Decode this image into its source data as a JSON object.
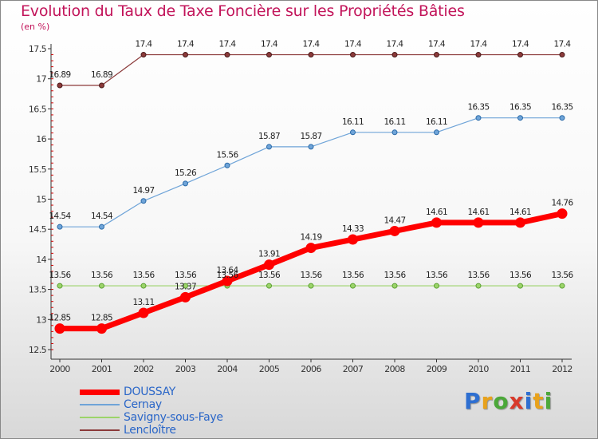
{
  "header": {
    "title": "Evolution du Taux de Taxe Foncière sur les Propriétés Bâties",
    "unit": "(en %)"
  },
  "logo": {
    "letters": [
      "P",
      "r",
      "o",
      "x",
      "i",
      "t",
      "i"
    ],
    "colors": [
      "#2e6fd1",
      "#e8a21c",
      "#4ca83a",
      "#d83a2a",
      "#2e6fd1",
      "#e8a21c",
      "#4ca83a"
    ]
  },
  "chart_data": {
    "type": "line",
    "title": "Evolution du Taux de Taxe Foncière sur les Propriétés Bâties",
    "ylabel": "(en %)",
    "xlabel": "",
    "x": [
      "2000",
      "2001",
      "2002",
      "2003",
      "2004",
      "2005",
      "2006",
      "2007",
      "2008",
      "2009",
      "2010",
      "2011",
      "2012"
    ],
    "ylim": [
      12.5,
      17.5
    ],
    "yticks": [
      "12.5",
      "13",
      "13.5",
      "14",
      "14.5",
      "15",
      "15.5",
      "16",
      "16.5",
      "17",
      "17.5"
    ],
    "grid": false,
    "legend_position": "bottom-left",
    "series": [
      {
        "name": "DOUSSAY",
        "color": "#ff0000",
        "values": [
          12.85,
          12.85,
          13.11,
          13.37,
          13.64,
          13.91,
          14.19,
          14.33,
          14.47,
          14.61,
          14.61,
          14.61,
          14.76
        ],
        "labels": [
          "12.85",
          "12.85",
          "13.11",
          "13.37",
          "13.64",
          "13.91",
          "14.19",
          "14.33",
          "14.47",
          "14.61",
          "14.61",
          "14.61",
          "14.76"
        ]
      },
      {
        "name": "Cernay",
        "color": "#6fa4d8",
        "values": [
          14.54,
          14.54,
          14.97,
          15.26,
          15.56,
          15.87,
          15.87,
          16.11,
          16.11,
          16.11,
          16.35,
          16.35,
          16.35
        ],
        "labels": [
          "14.54",
          "14.54",
          "14.97",
          "15.26",
          "15.56",
          "15.87",
          "15.87",
          "16.11",
          "16.11",
          "16.11",
          "16.35",
          "16.35",
          "16.35"
        ]
      },
      {
        "name": "Savigny-sous-Faye",
        "color": "#9cd46a",
        "values": [
          13.56,
          13.56,
          13.56,
          13.56,
          13.56,
          13.56,
          13.56,
          13.56,
          13.56,
          13.56,
          13.56,
          13.56,
          13.56
        ],
        "labels": [
          "13.56",
          "13.56",
          "13.56",
          "13.56",
          "13.56",
          "13.56",
          "13.56",
          "13.56",
          "13.56",
          "13.56",
          "13.56",
          "13.56",
          "13.56"
        ]
      },
      {
        "name": "Lencloître",
        "color": "#8b3a3a",
        "values": [
          16.89,
          16.89,
          17.4,
          17.4,
          17.4,
          17.4,
          17.4,
          17.4,
          17.4,
          17.4,
          17.4,
          17.4,
          17.4
        ],
        "labels": [
          "16.89",
          "16.89",
          "17.4",
          "17.4",
          "17.4",
          "17.4",
          "17.4",
          "17.4",
          "17.4",
          "17.4",
          "17.4",
          "17.4",
          "17.4"
        ]
      }
    ]
  }
}
